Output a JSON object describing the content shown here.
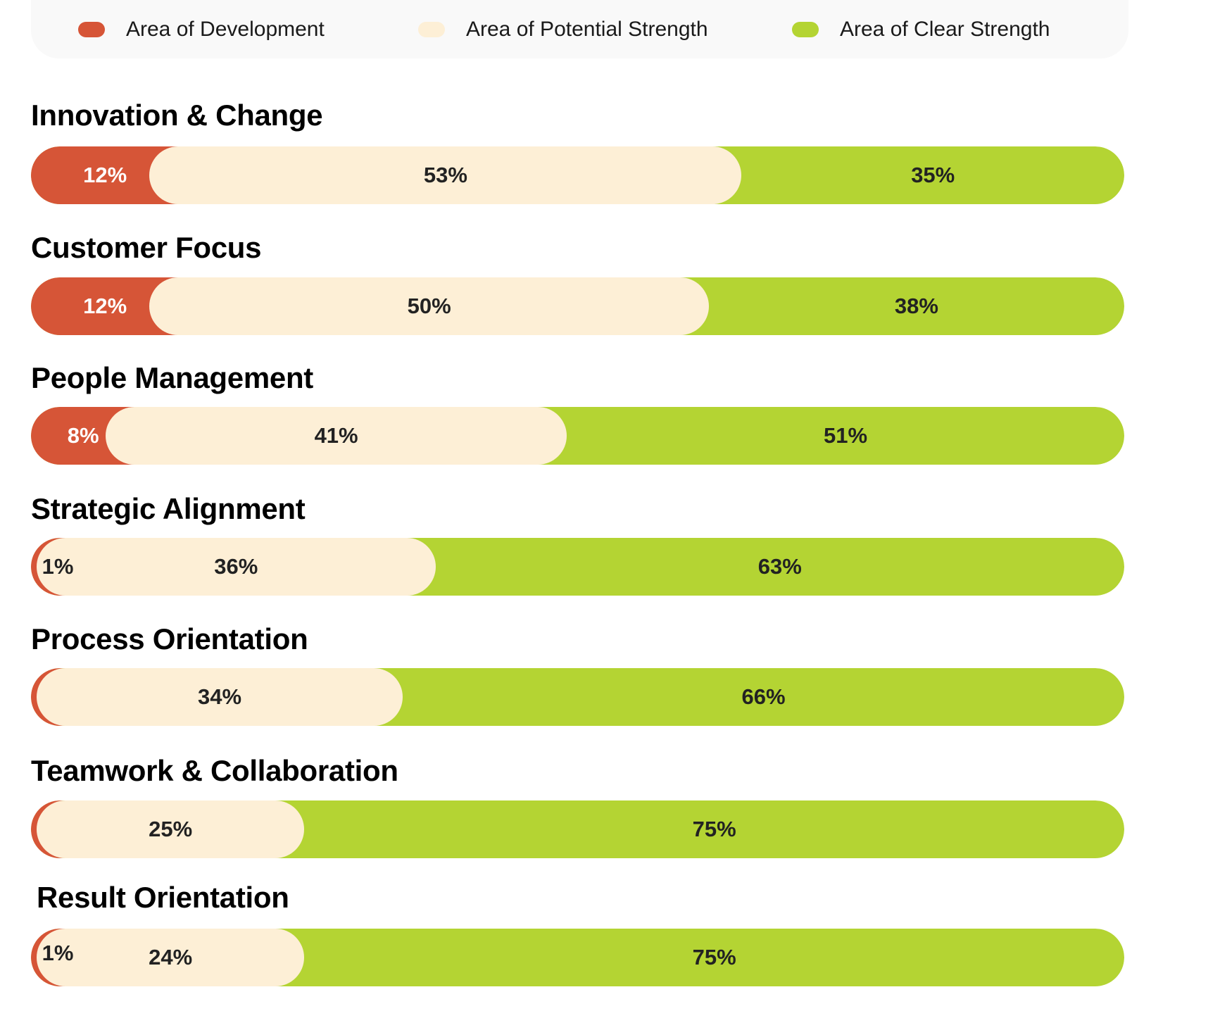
{
  "chart_data": {
    "type": "bar",
    "orientation": "horizontal",
    "stacked": true,
    "normalized_percent": true,
    "legend": {
      "placement": "top",
      "entries": [
        {
          "name": "Area of Development",
          "color": "#d65537"
        },
        {
          "name": "Area of Potential Strength",
          "color": "#fdefd6"
        },
        {
          "name": "Area of Clear Strength",
          "color": "#b4d433"
        }
      ]
    },
    "categories": [
      "Innovation & Change",
      "Customer Focus",
      "People Management",
      "Strategic Alignment",
      "Process Orientation",
      "Teamwork & Collaboration",
      "Result Orientation"
    ],
    "series": [
      {
        "name": "Area of Development",
        "values": [
          12,
          12,
          8,
          1,
          0,
          0,
          1
        ],
        "labels": [
          "12%",
          "12%",
          "8%",
          "1%",
          "",
          "",
          "1%"
        ]
      },
      {
        "name": "Area of Potential Strength",
        "values": [
          53,
          50,
          41,
          36,
          34,
          25,
          24
        ],
        "labels": [
          "53%",
          "50%",
          "41%",
          "36%",
          "34%",
          "25%",
          "24%"
        ]
      },
      {
        "name": "Area of Clear Strength",
        "values": [
          35,
          38,
          51,
          63,
          66,
          75,
          75
        ],
        "labels": [
          "35%",
          "38%",
          "51%",
          "63%",
          "66%",
          "75%",
          "75%"
        ]
      }
    ],
    "grid": false,
    "xlim": [
      0,
      100
    ]
  }
}
